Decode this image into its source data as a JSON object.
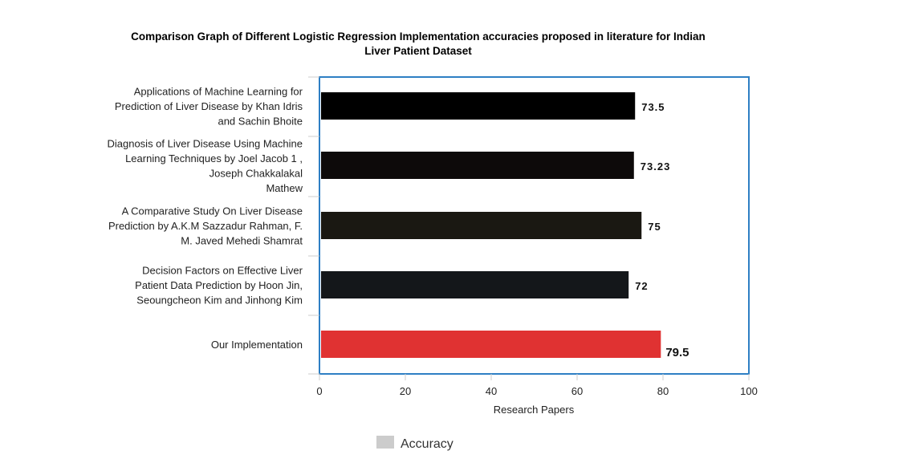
{
  "chart_data": {
    "type": "bar",
    "orientation": "horizontal",
    "title": "Comparison Graph of Different Logistic Regression Implementation accuracies proposed in literature for Indian Liver Patient Dataset",
    "title_lines": [
      "Comparison Graph of Different Logistic Regression Implementation accuracies proposed in literature for Indian",
      "Liver Patient Dataset"
    ],
    "xlabel": "Research Papers",
    "ylabel": "",
    "xlim": [
      0,
      100
    ],
    "x_ticks": [
      "0",
      "20",
      "40",
      "60",
      "80",
      "100"
    ],
    "x_tick_values": [
      0,
      20,
      40,
      60,
      80,
      100
    ],
    "grid": false,
    "legend": {
      "position": "bottom",
      "entries": [
        {
          "label": "Accuracy",
          "color": "#cccccc"
        }
      ]
    },
    "categories": [
      "Applications of Machine Learning for Prediction of Liver Disease by Khan Idris and Sachin Bhoite",
      "Diagnosis of Liver Disease Using Machine Learning Techniques by Joel Jacob 1 , Joseph Chakkalakal Mathew",
      "A Comparative Study On Liver Disease Prediction by A.K.M Sazzadur Rahman, F. M. Javed Mehedi Shamrat",
      "Decision Factors on Effective Liver Patient Data Prediction by Hoon Jin, Seoungcheon Kim and Jinhong Kim",
      "Our Implementation"
    ],
    "category_label_lines": [
      [
        "Applications of Machine Learning for",
        "Prediction of Liver Disease by Khan Idris",
        "and Sachin Bhoite"
      ],
      [
        "Diagnosis of Liver Disease Using Machine",
        "Learning Techniques by Joel Jacob 1 ,",
        "Joseph Chakkalakal",
        "Mathew"
      ],
      [
        "A Comparative Study On Liver Disease",
        "Prediction by A.K.M Sazzadur Rahman, F.",
        "M. Javed Mehedi Shamrat"
      ],
      [
        "Decision Factors on Effective Liver",
        "Patient Data Prediction by Hoon Jin,",
        "Seoungcheon Kim and Jinhong Kim"
      ],
      [
        "Our Implementation"
      ]
    ],
    "values": [
      73.5,
      73.23,
      75,
      72,
      79.5
    ],
    "data_labels": [
      "73.5",
      "73.23",
      "75",
      "72",
      "79.5"
    ],
    "series": [
      {
        "name": "Accuracy",
        "values": [
          73.5,
          73.23,
          75,
          72,
          79.5
        ]
      }
    ],
    "bar_colors": [
      "#000000",
      "#0d0a0a",
      "#1a1812",
      "#14171a",
      "#e03232"
    ],
    "frame_color": "#2e7fc4"
  }
}
